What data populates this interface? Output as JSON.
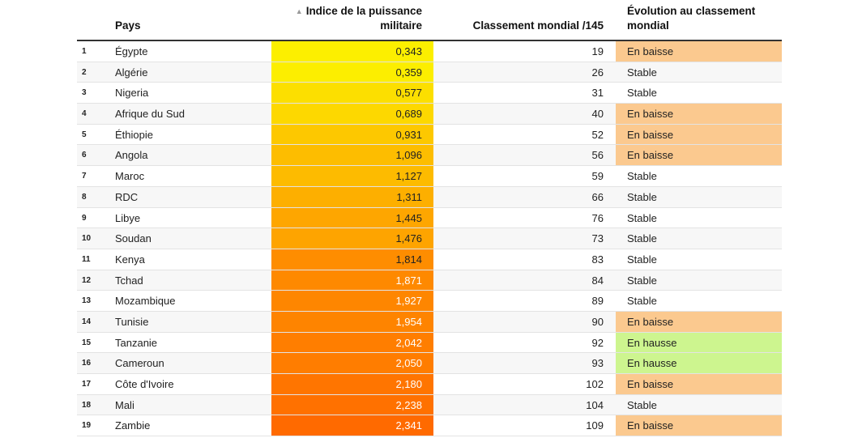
{
  "header": {
    "pays": "Pays",
    "indice_line1": "Indice de la puissance",
    "indice_line2": "militaire",
    "classement": "Classement mondial /145",
    "evolution_line1": "Évolution au classement",
    "evolution_line2": "mondial",
    "sort_icon": "sort-ascending-icon"
  },
  "colors": {
    "evo_baisse": "#fbc98f",
    "evo_hausse": "#cdf58f",
    "evo_stable": "#ffffff",
    "scale_low": "#fcef00",
    "scale_high": "#ff6a00"
  },
  "chart_data": {
    "type": "table",
    "columns": [
      "",
      "Pays",
      "Indice de la puissance militaire",
      "Classement mondial /145",
      "Évolution au classement mondial"
    ],
    "rows": [
      {
        "rank": "1",
        "pays": "Égypte",
        "indice": "0,343",
        "value": 0.343,
        "classement": "19",
        "evolution": "En baisse"
      },
      {
        "rank": "2",
        "pays": "Algérie",
        "indice": "0,359",
        "value": 0.359,
        "classement": "26",
        "evolution": "Stable"
      },
      {
        "rank": "3",
        "pays": "Nigeria",
        "indice": "0,577",
        "value": 0.577,
        "classement": "31",
        "evolution": "Stable"
      },
      {
        "rank": "4",
        "pays": "Afrique du Sud",
        "indice": "0,689",
        "value": 0.689,
        "classement": "40",
        "evolution": "En baisse"
      },
      {
        "rank": "5",
        "pays": "Éthiopie",
        "indice": "0,931",
        "value": 0.931,
        "classement": "52",
        "evolution": "En baisse"
      },
      {
        "rank": "6",
        "pays": "Angola",
        "indice": "1,096",
        "value": 1.096,
        "classement": "56",
        "evolution": "En baisse"
      },
      {
        "rank": "7",
        "pays": "Maroc",
        "indice": "1,127",
        "value": 1.127,
        "classement": "59",
        "evolution": "Stable"
      },
      {
        "rank": "8",
        "pays": "RDC",
        "indice": "1,311",
        "value": 1.311,
        "classement": "66",
        "evolution": "Stable"
      },
      {
        "rank": "9",
        "pays": "Libye",
        "indice": "1,445",
        "value": 1.445,
        "classement": "76",
        "evolution": "Stable"
      },
      {
        "rank": "10",
        "pays": "Soudan",
        "indice": "1,476",
        "value": 1.476,
        "classement": "73",
        "evolution": "Stable"
      },
      {
        "rank": "11",
        "pays": "Kenya",
        "indice": "1,814",
        "value": 1.814,
        "classement": "83",
        "evolution": "Stable"
      },
      {
        "rank": "12",
        "pays": "Tchad",
        "indice": "1,871",
        "value": 1.871,
        "classement": "84",
        "evolution": "Stable"
      },
      {
        "rank": "13",
        "pays": "Mozambique",
        "indice": "1,927",
        "value": 1.927,
        "classement": "89",
        "evolution": "Stable"
      },
      {
        "rank": "14",
        "pays": "Tunisie",
        "indice": "1,954",
        "value": 1.954,
        "classement": "90",
        "evolution": "En baisse"
      },
      {
        "rank": "15",
        "pays": "Tanzanie",
        "indice": "2,042",
        "value": 2.042,
        "classement": "92",
        "evolution": "En hausse"
      },
      {
        "rank": "16",
        "pays": "Cameroun",
        "indice": "2,050",
        "value": 2.05,
        "classement": "93",
        "evolution": "En hausse"
      },
      {
        "rank": "17",
        "pays": "Côte d'Ivoire",
        "indice": "2,180",
        "value": 2.18,
        "classement": "102",
        "evolution": "En baisse"
      },
      {
        "rank": "18",
        "pays": "Mali",
        "indice": "2,238",
        "value": 2.238,
        "classement": "104",
        "evolution": "Stable"
      },
      {
        "rank": "19",
        "pays": "Zambie",
        "indice": "2,341",
        "value": 2.341,
        "classement": "109",
        "evolution": "En baisse"
      }
    ]
  }
}
